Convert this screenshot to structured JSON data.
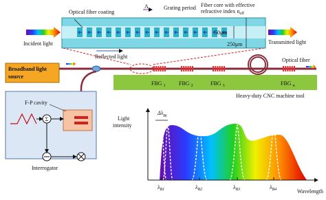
{
  "fiber_detail": {
    "coating_label": "Optical fiber coating",
    "period_symbol": "Λ",
    "period_label": "Grating period",
    "core_label_line1": "Fiber core with effective",
    "core_label_line2": "refractive index n",
    "core_label_sub": "eff",
    "core_diameter": "50μm",
    "coating_diameter": "250μm",
    "incident": "Incident light",
    "reflected": "Reflected light",
    "transmitted": "Transmitted light"
  },
  "system": {
    "source_line1": "Broadband light",
    "source_line2": "source",
    "fiber_label": "Optical fiber",
    "fbgs": [
      {
        "main": "FBG",
        "sub": "1"
      },
      {
        "main": "FBG",
        "sub": "2"
      },
      {
        "main": "FBG",
        "sub": "3"
      },
      {
        "main": "FBG",
        "sub": "n"
      }
    ],
    "machine": "Heavy-duty CNC machine tool"
  },
  "interrogator": {
    "cavity": "F-P cavity",
    "sum": "Σ",
    "label": "Interrogator"
  },
  "spectrum": {
    "y_label_line1": "Light",
    "y_label_line2": "intensity",
    "delta_main": "Δλ",
    "delta_sub": "Bi",
    "peaks": [
      {
        "main": "λ",
        "sub": "B1"
      },
      {
        "main": "λ",
        "sub": "B2"
      },
      {
        "main": "λ",
        "sub": "B3"
      },
      {
        "main": "λ",
        "sub": "B4"
      }
    ],
    "x_label": "Wavelength"
  }
}
